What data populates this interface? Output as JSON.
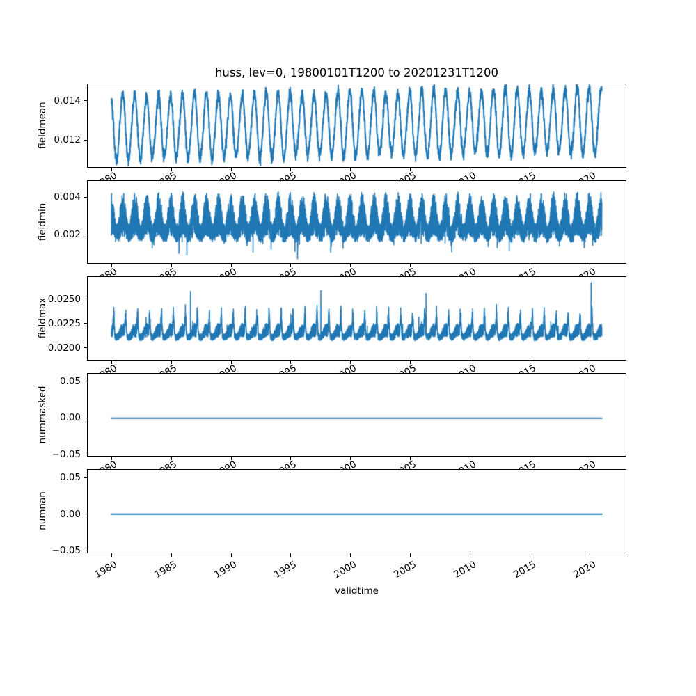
{
  "figure": {
    "title": "huss, lev=0, 19800101T1200 to 20201231T1200",
    "background": "#ffffff"
  },
  "chart_data": {
    "type": "line",
    "title": "huss, lev=0, 19800101T1200 to 20201231T1200",
    "xlabel": "validtime",
    "line_color": "#1f77b4",
    "legend": "none",
    "grid": false,
    "x_start": 1980.0,
    "x_end": 2021.0,
    "xlim": [
      1977.95,
      2023.05
    ],
    "xticks": {
      "values": [
        1980,
        1985,
        1990,
        1995,
        2000,
        2005,
        2010,
        2015,
        2020
      ],
      "labels": [
        "1980",
        "1985",
        "1990",
        "1995",
        "2000",
        "2005",
        "2010",
        "2015",
        "2020"
      ],
      "rotation_deg": 30
    },
    "panels": [
      {
        "ylabel": "fieldmean",
        "ylim": [
          0.0106,
          0.01489
        ],
        "yticks": {
          "values": [
            0.012,
            0.014
          ],
          "labels": [
            "0.012",
            "0.014"
          ]
        },
        "series": {
          "kind": "seasonal",
          "n": 4100,
          "seed": 42,
          "base": 0.01262,
          "trend_total": 0.00034,
          "amp": 0.0016,
          "phase": 0.075,
          "noise": 0.00015,
          "description": "annual cycle: peaks ~0.0145, troughs ~0.0108 rising to ~0.0113 by 2020"
        }
      },
      {
        "ylabel": "fieldmin",
        "ylim": [
          0.00047,
          0.00491
        ],
        "yticks": {
          "values": [
            0.002,
            0.004
          ],
          "labels": [
            "0.002",
            "0.004"
          ]
        },
        "series": {
          "kind": "band",
          "n": 8200,
          "seed": 7,
          "base": 0.00262,
          "seasonal_amp": 0.00052,
          "noise": 0.00082,
          "noise_seasonal": 0.00034,
          "phase": 0.3,
          "description": "dense noisy band ~0.0010-0.0045 with annual modulation and occasional dips to ~0.0007"
        }
      },
      {
        "ylabel": "fieldmax",
        "ylim": [
          0.01872,
          0.02736
        ],
        "yticks": {
          "values": [
            0.02,
            0.0225,
            0.025
          ],
          "labels": [
            "0.0200",
            "0.0225",
            "0.0250"
          ]
        },
        "series": {
          "kind": "floor",
          "n": 8200,
          "seed": 13,
          "base": 0.02145,
          "seasonal_amp": 0.00038,
          "noise": 0.00052,
          "phase": 0.32,
          "spikes": [
            {
              "t": 1986.6,
              "v": 0.0258
            },
            {
              "t": 1997.5,
              "v": 0.0259
            },
            {
              "t": 2006.3,
              "v": 0.0256
            },
            {
              "t": 2020.1,
              "v": 0.0267
            }
          ],
          "description": "noisy band ~0.0200-0.0240 with narrow annual peaks; isolated spikes up to ~0.0267 near 2020"
        }
      },
      {
        "ylabel": "nummasked",
        "ylim": [
          -0.053,
          0.0615
        ],
        "yticks": {
          "values": [
            -0.05,
            0,
            0.05
          ],
          "labels": [
            "−0.05",
            "0.00",
            "0.05"
          ]
        },
        "series": {
          "kind": "constant",
          "value": 0,
          "description": "constant 0 for all times"
        }
      },
      {
        "ylabel": "numnan",
        "ylim": [
          -0.053,
          0.0615
        ],
        "yticks": {
          "values": [
            -0.05,
            0,
            0.05
          ],
          "labels": [
            "−0.05",
            "0.00",
            "0.05"
          ]
        },
        "series": {
          "kind": "constant",
          "value": 0,
          "description": "constant 0 for all times"
        }
      }
    ]
  }
}
